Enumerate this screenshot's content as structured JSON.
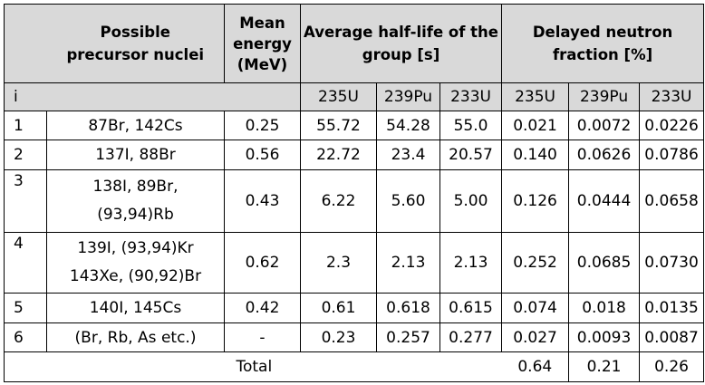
{
  "headers": {
    "precursor": [
      "Possible",
      "precursor nuclei"
    ],
    "energy": [
      "Mean",
      "energy",
      "(MeV)"
    ],
    "halflife": [
      "Average half-life of the",
      "group [s]"
    ],
    "fraction": [
      "Delayed neutron",
      "fraction  [%]"
    ]
  },
  "subheader": {
    "index": "i",
    "isotopes": [
      "235U",
      "239Pu",
      "233U",
      "235U",
      "239Pu",
      "233U"
    ]
  },
  "rows": [
    {
      "i": "1",
      "nuclei": [
        "87Br, 142Cs"
      ],
      "energy": "0.25",
      "hl": [
        "55.72",
        "54.28",
        "55.0"
      ],
      "frac": [
        "0.021",
        "0.0072",
        "0.0226"
      ]
    },
    {
      "i": "2",
      "nuclei": [
        "137I, 88Br"
      ],
      "energy": "0.56",
      "hl": [
        "22.72",
        "23.4",
        "20.57"
      ],
      "frac": [
        "0.140",
        "0.0626",
        "0.0786"
      ]
    },
    {
      "i": "3",
      "nuclei": [
        "138I, 89Br,",
        "(93,94)Rb"
      ],
      "energy": "0.43",
      "hl": [
        "6.22",
        "5.60",
        "5.00"
      ],
      "frac": [
        "0.126",
        "0.0444",
        "0.0658"
      ]
    },
    {
      "i": "4",
      "nuclei": [
        "139I, (93,94)Kr",
        "143Xe, (90,92)Br"
      ],
      "energy": "0.62",
      "hl": [
        "2.3",
        "2.13",
        "2.13"
      ],
      "frac": [
        "0.252",
        "0.0685",
        "0.0730"
      ]
    },
    {
      "i": "5",
      "nuclei": [
        "140I, 145Cs"
      ],
      "energy": "0.42",
      "hl": [
        "0.61",
        "0.618",
        "0.615"
      ],
      "frac": [
        "0.074",
        "0.018",
        "0.0135"
      ]
    },
    {
      "i": "6",
      "nuclei": [
        "(Br, Rb, As etc.)"
      ],
      "energy": "-",
      "hl": [
        "0.23",
        "0.257",
        "0.277"
      ],
      "frac": [
        "0.027",
        "0.0093",
        "0.0087"
      ]
    }
  ],
  "total": {
    "label": "Total",
    "values": [
      "0.64",
      "0.21",
      "0.26"
    ]
  }
}
